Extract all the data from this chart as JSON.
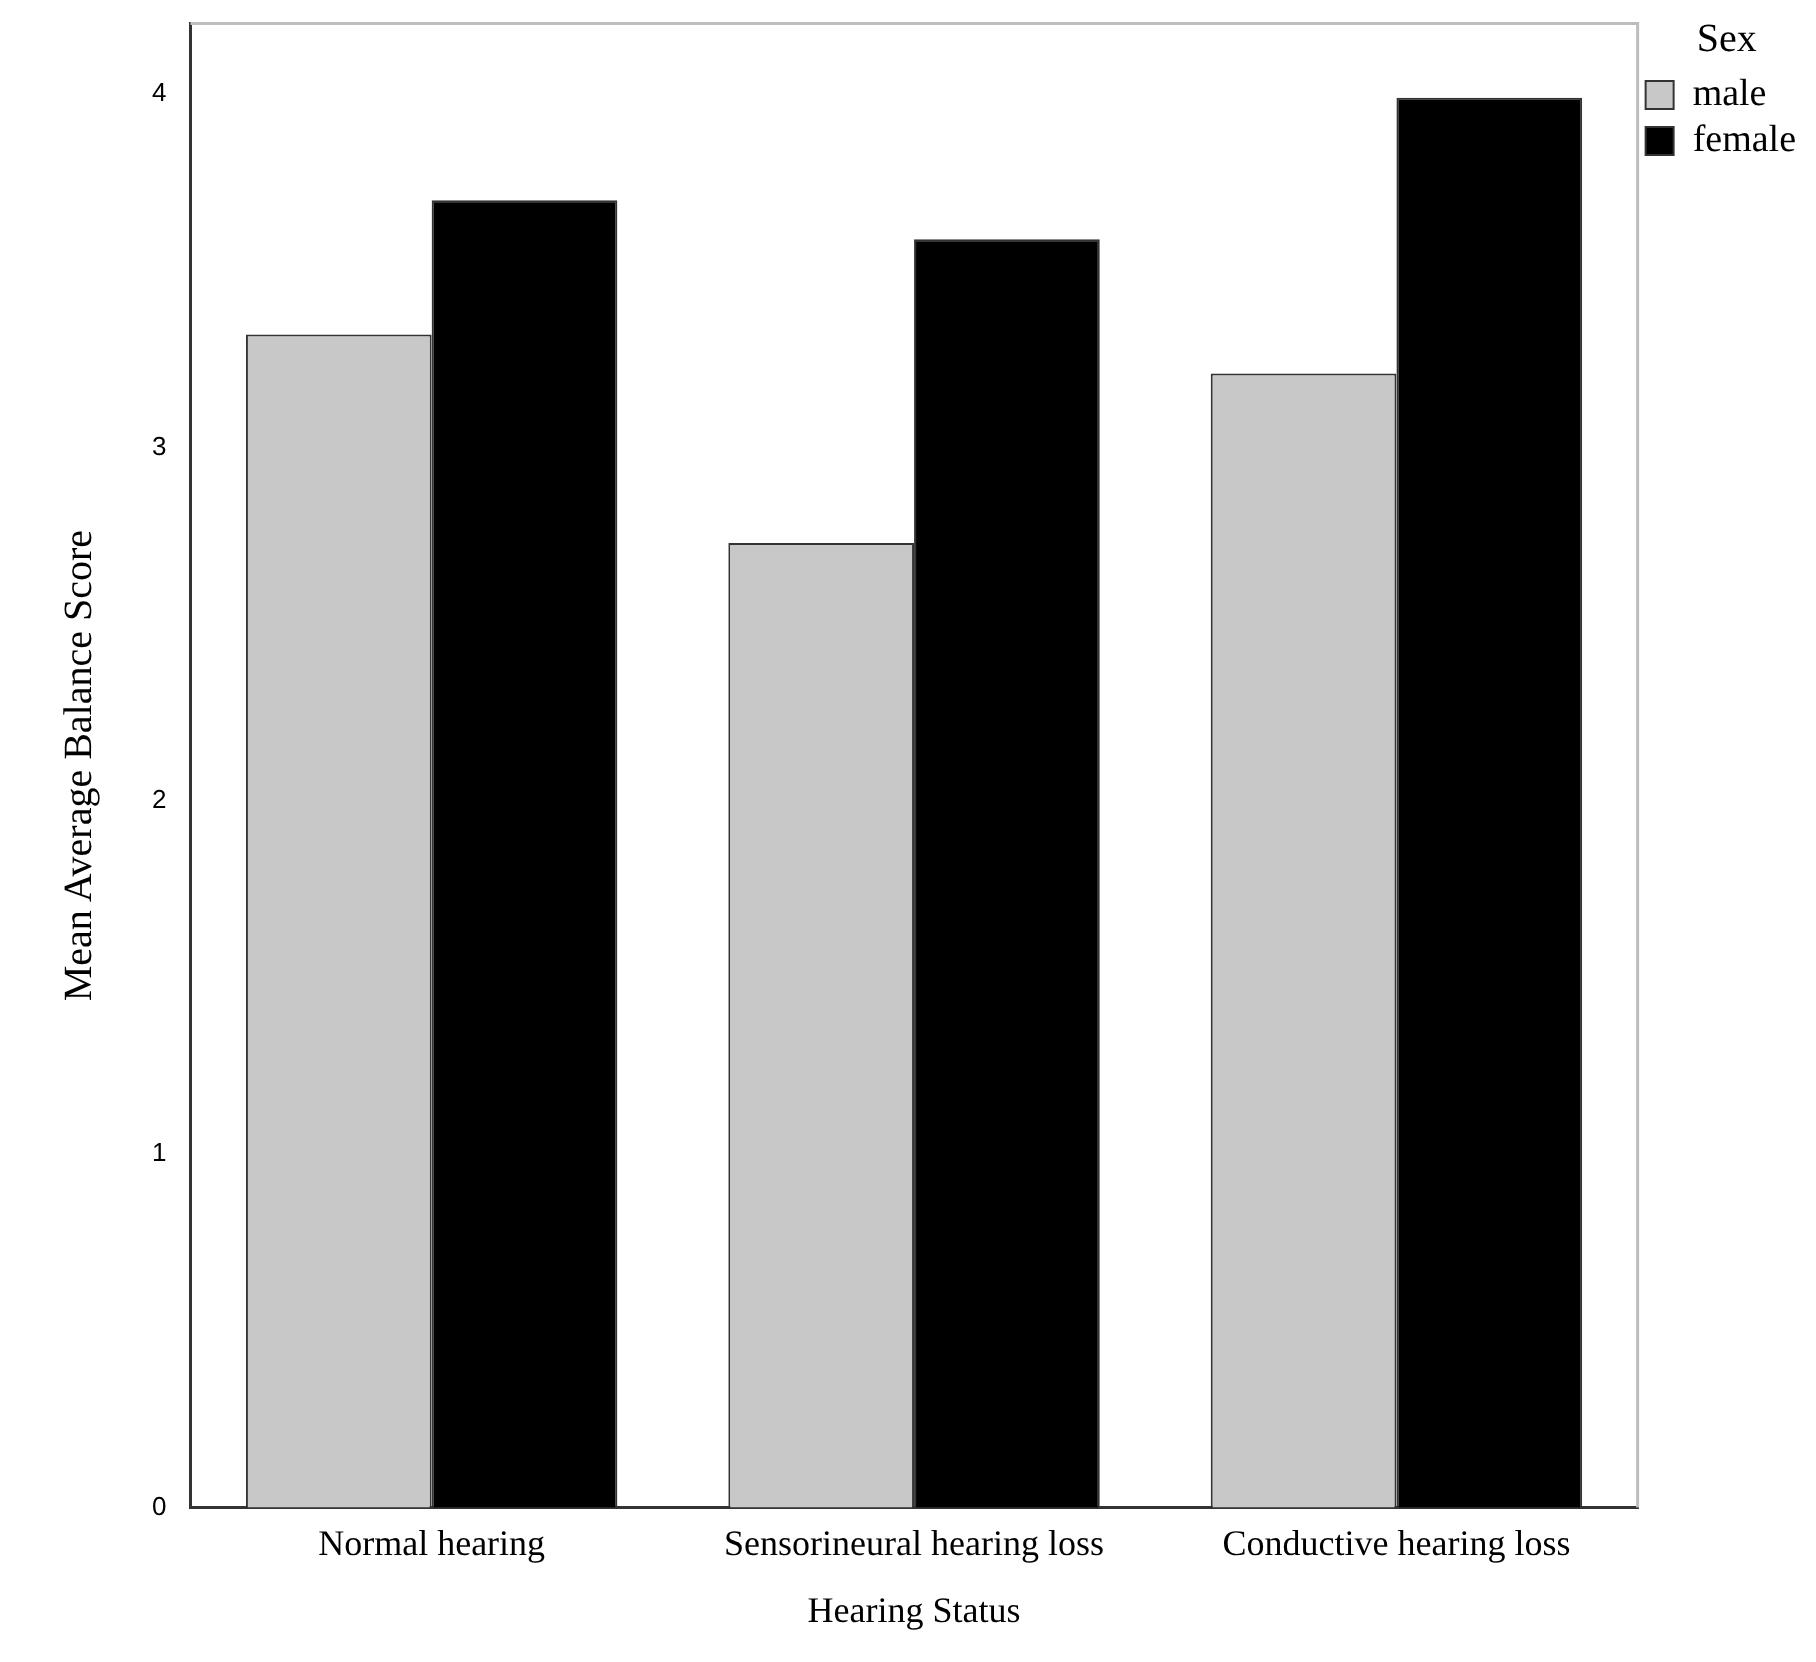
{
  "chart_data": {
    "type": "bar",
    "xlabel": "Hearing Status",
    "ylabel": "Mean Average Balance Score",
    "legend_title": "Sex",
    "categories": [
      "Normal hearing",
      "Sensorineural hearing loss",
      "Conductive hearing loss"
    ],
    "series": [
      {
        "name": "male",
        "color": "#c8c8c8",
        "values": [
          3.32,
          2.73,
          3.21
        ]
      },
      {
        "name": "female",
        "color": "#000000",
        "values": [
          3.7,
          3.59,
          3.99
        ]
      }
    ],
    "ylim": [
      0,
      4.2
    ],
    "yticks": [
      0,
      1,
      2,
      3,
      4
    ],
    "grid": false,
    "legend": "top right"
  }
}
